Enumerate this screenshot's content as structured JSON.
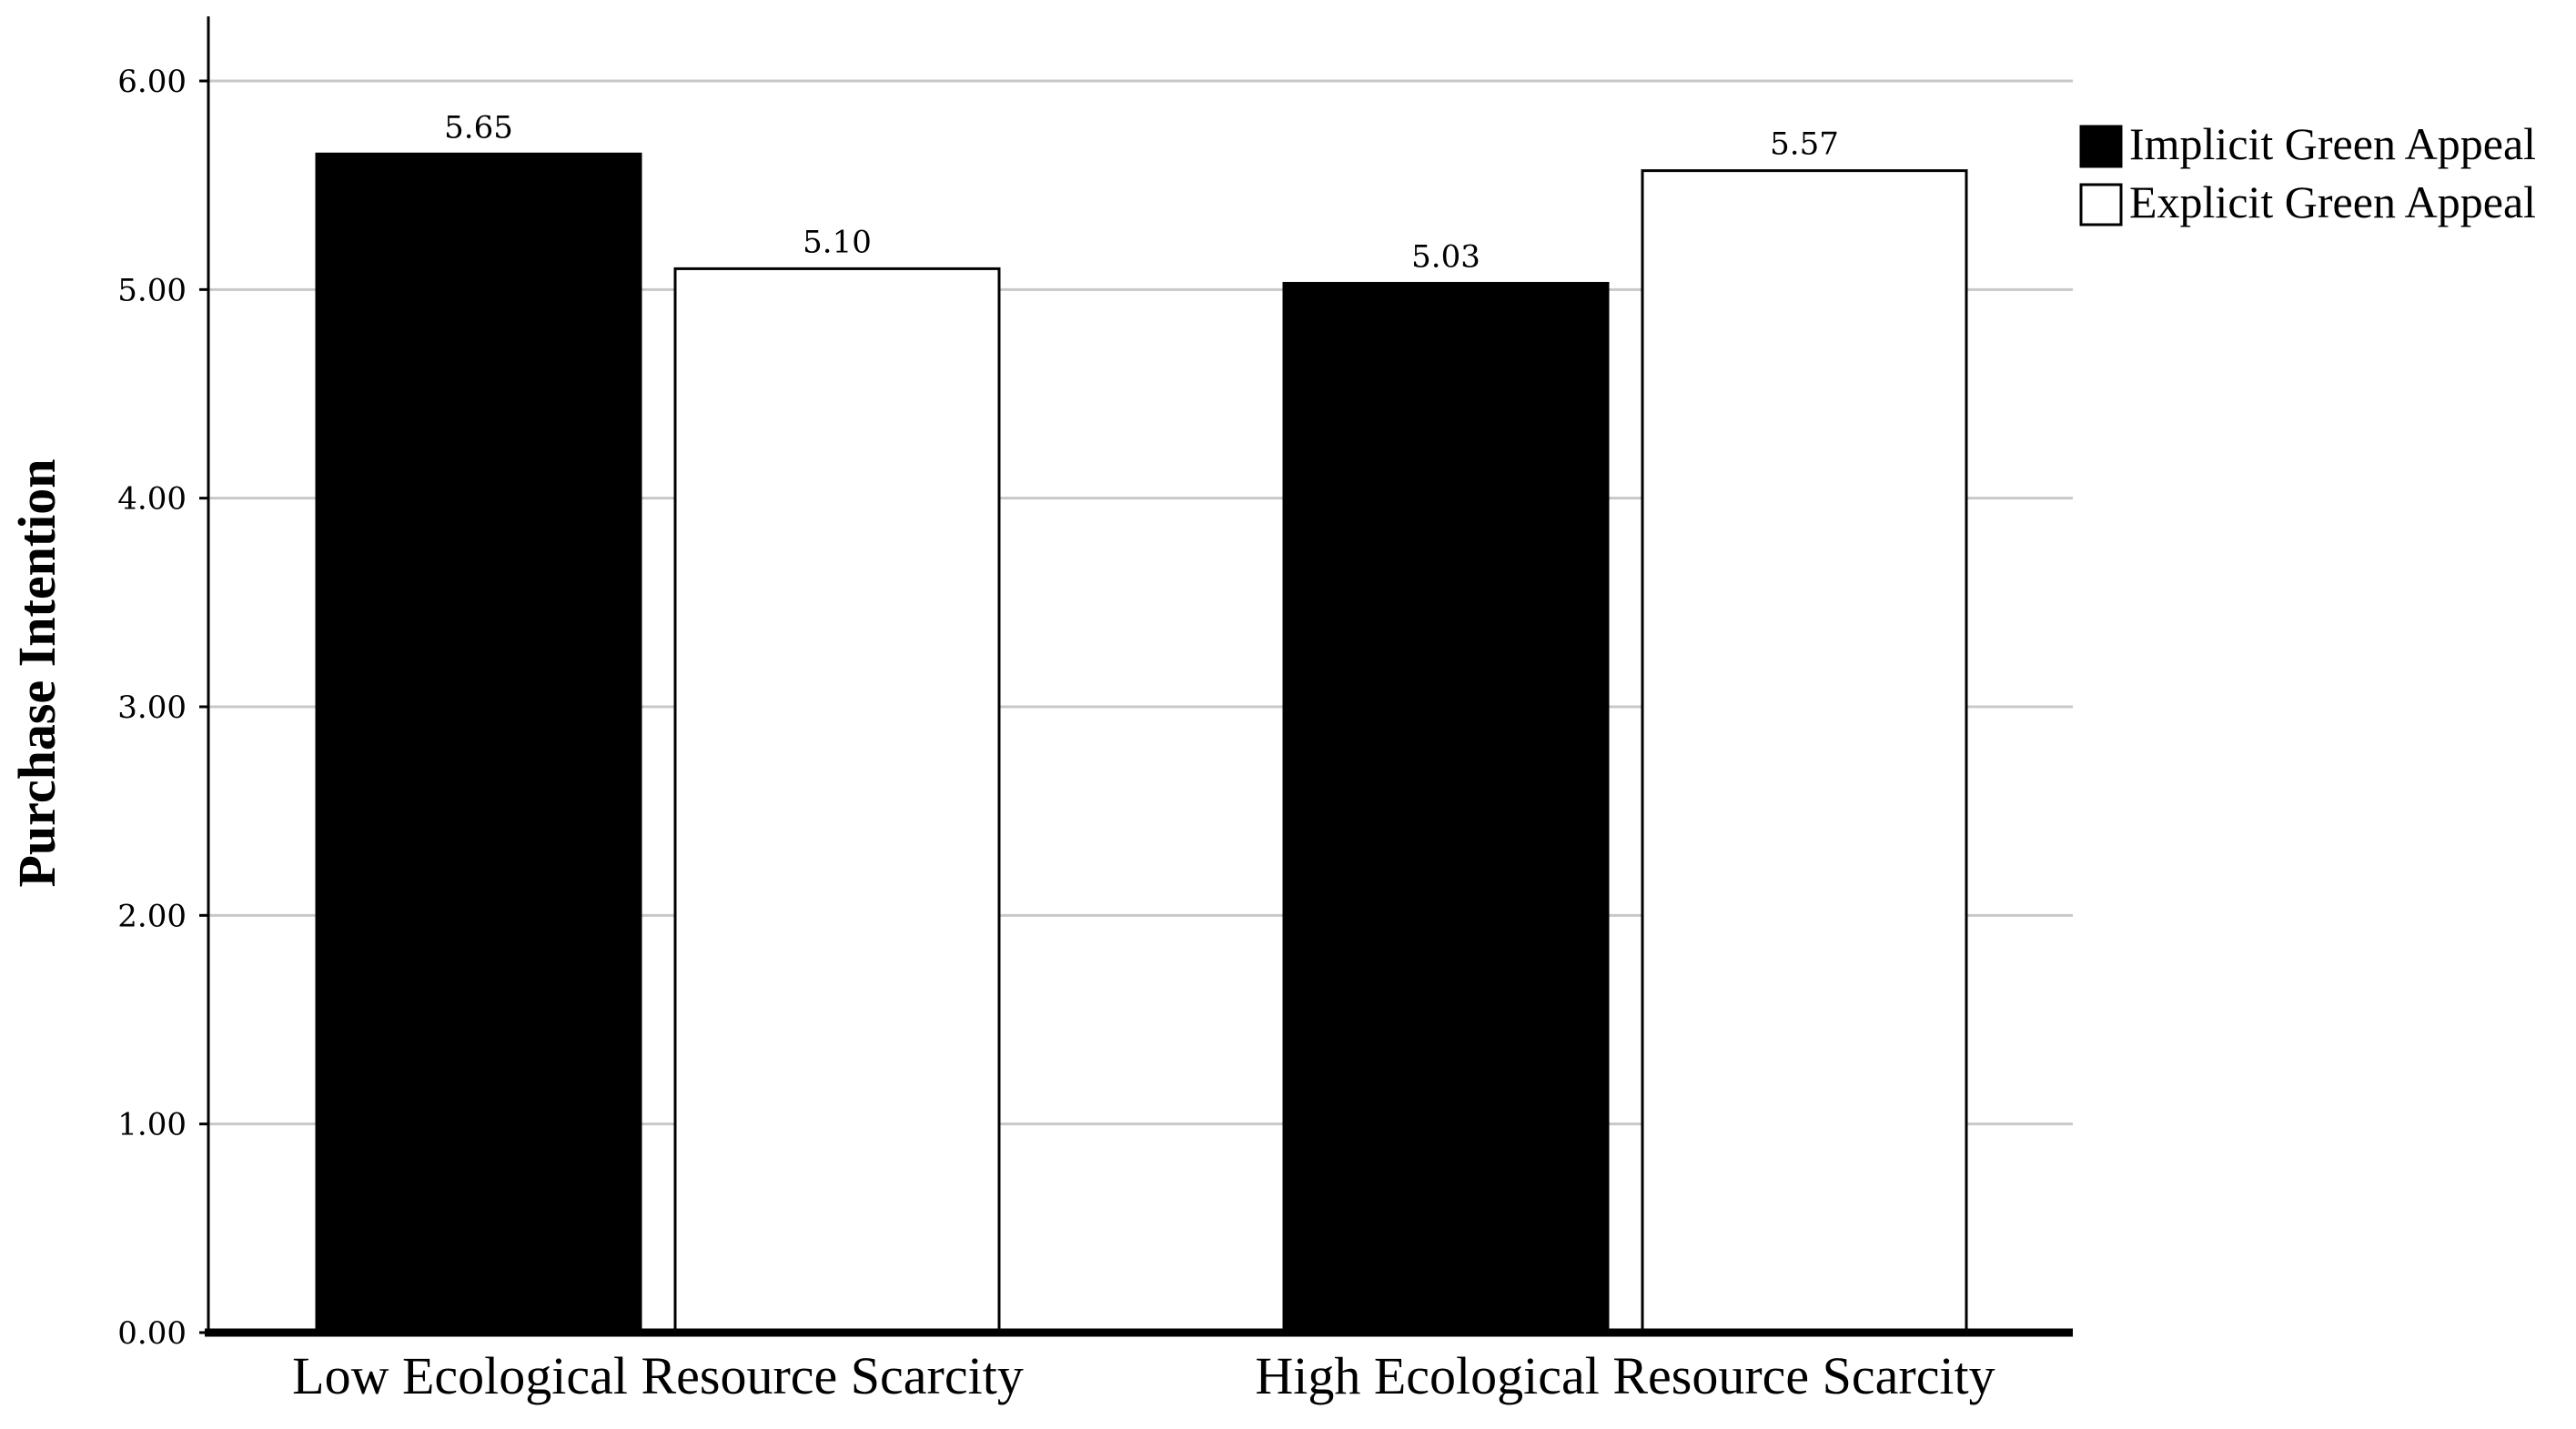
{
  "chart_data": {
    "type": "bar",
    "title": "",
    "xlabel": "",
    "ylabel": "Purchase Intention",
    "categories": [
      "Low Ecological Resource Scarcity",
      "High Ecological Resource Scarcity"
    ],
    "series": [
      {
        "name": "Implicit Green Appeal",
        "values": [
          5.65,
          5.03
        ],
        "labels": [
          "5.65",
          "5.03"
        ],
        "color": "#000000"
      },
      {
        "name": "Explicit Green Appeal",
        "values": [
          5.1,
          5.57
        ],
        "labels": [
          "5.10",
          "5.57"
        ],
        "color": "#ffffff"
      }
    ],
    "yticks": [
      "0.00",
      "1.00",
      "2.00",
      "3.00",
      "4.00",
      "5.00",
      "6.00"
    ],
    "ylim": [
      0,
      6.3
    ],
    "grid": true,
    "legend_position": "top-right"
  }
}
